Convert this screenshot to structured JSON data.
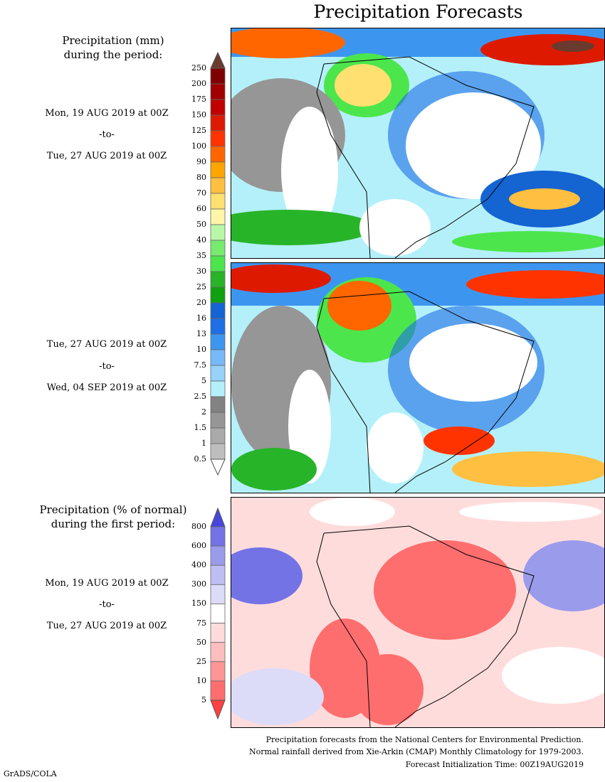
{
  "title": "Precipitation Forecasts",
  "panel1": {
    "heading1": "Precipitation (mm)",
    "heading2": "during the period:",
    "start": "Mon, 19 AUG 2019 at 00Z",
    "to": "-to-",
    "end": "Tue, 27 AUG 2019 at 00Z"
  },
  "panel2": {
    "start": "Tue, 27 AUG 2019 at 00Z",
    "to": "-to-",
    "end": "Wed, 04 SEP 2019 at 00Z"
  },
  "panel3": {
    "heading1": "Precipitation (% of normal)",
    "heading2": "during the first period:",
    "start": "Mon, 19 AUG 2019 at 00Z",
    "to": "-to-",
    "end": "Tue, 27 AUG 2019 at 00Z"
  },
  "precip_colorbar": {
    "labels": [
      "250",
      "200",
      "175",
      "150",
      "125",
      "100",
      "90",
      "80",
      "70",
      "60",
      "50",
      "40",
      "35",
      "30",
      "25",
      "20",
      "16",
      "13",
      "10",
      "7.5",
      "5",
      "2.5",
      "2",
      "1.5",
      "1",
      "0.5"
    ],
    "top_arrow_color": "#6b3a2e",
    "colors": [
      "#7f0000",
      "#a00000",
      "#c00000",
      "#dd1a00",
      "#ff3300",
      "#ff6600",
      "#ffa500",
      "#ffbf40",
      "#ffe070",
      "#fff5a8",
      "#b9f7a8",
      "#78eb6e",
      "#4ce64c",
      "#28b428",
      "#10a010",
      "#1464d2",
      "#1e6ee6",
      "#3c96f0",
      "#78b9fa",
      "#96d2fa",
      "#b4f0fa",
      "#828282",
      "#969696",
      "#aaaaaa",
      "#bebebe"
    ],
    "bottom_arrow_color": "#ffffff"
  },
  "percent_colorbar": {
    "labels": [
      "800",
      "600",
      "400",
      "300",
      "150",
      "75",
      "50",
      "25",
      "10",
      "5"
    ],
    "top_arrow_color": "#4646dc",
    "colors": [
      "#7373e6",
      "#9b9bec",
      "#bebef2",
      "#dcdcf8",
      "#ffffff",
      "#ffdcdc",
      "#ffbebe",
      "#ff9696",
      "#ff6e6e"
    ],
    "bottom_arrow_color": "#ff4040"
  },
  "footer": {
    "line1": "Precipitation forecasts from the National Centers for Environmental Prediction.",
    "line2": "Normal rainfall derived from Xie-Arkin (CMAP) Monthly Climatology for 1979-2003.",
    "line3": "Forecast Initialization Time: 00Z19AUG2019"
  },
  "credit": "GrADS/COLA"
}
